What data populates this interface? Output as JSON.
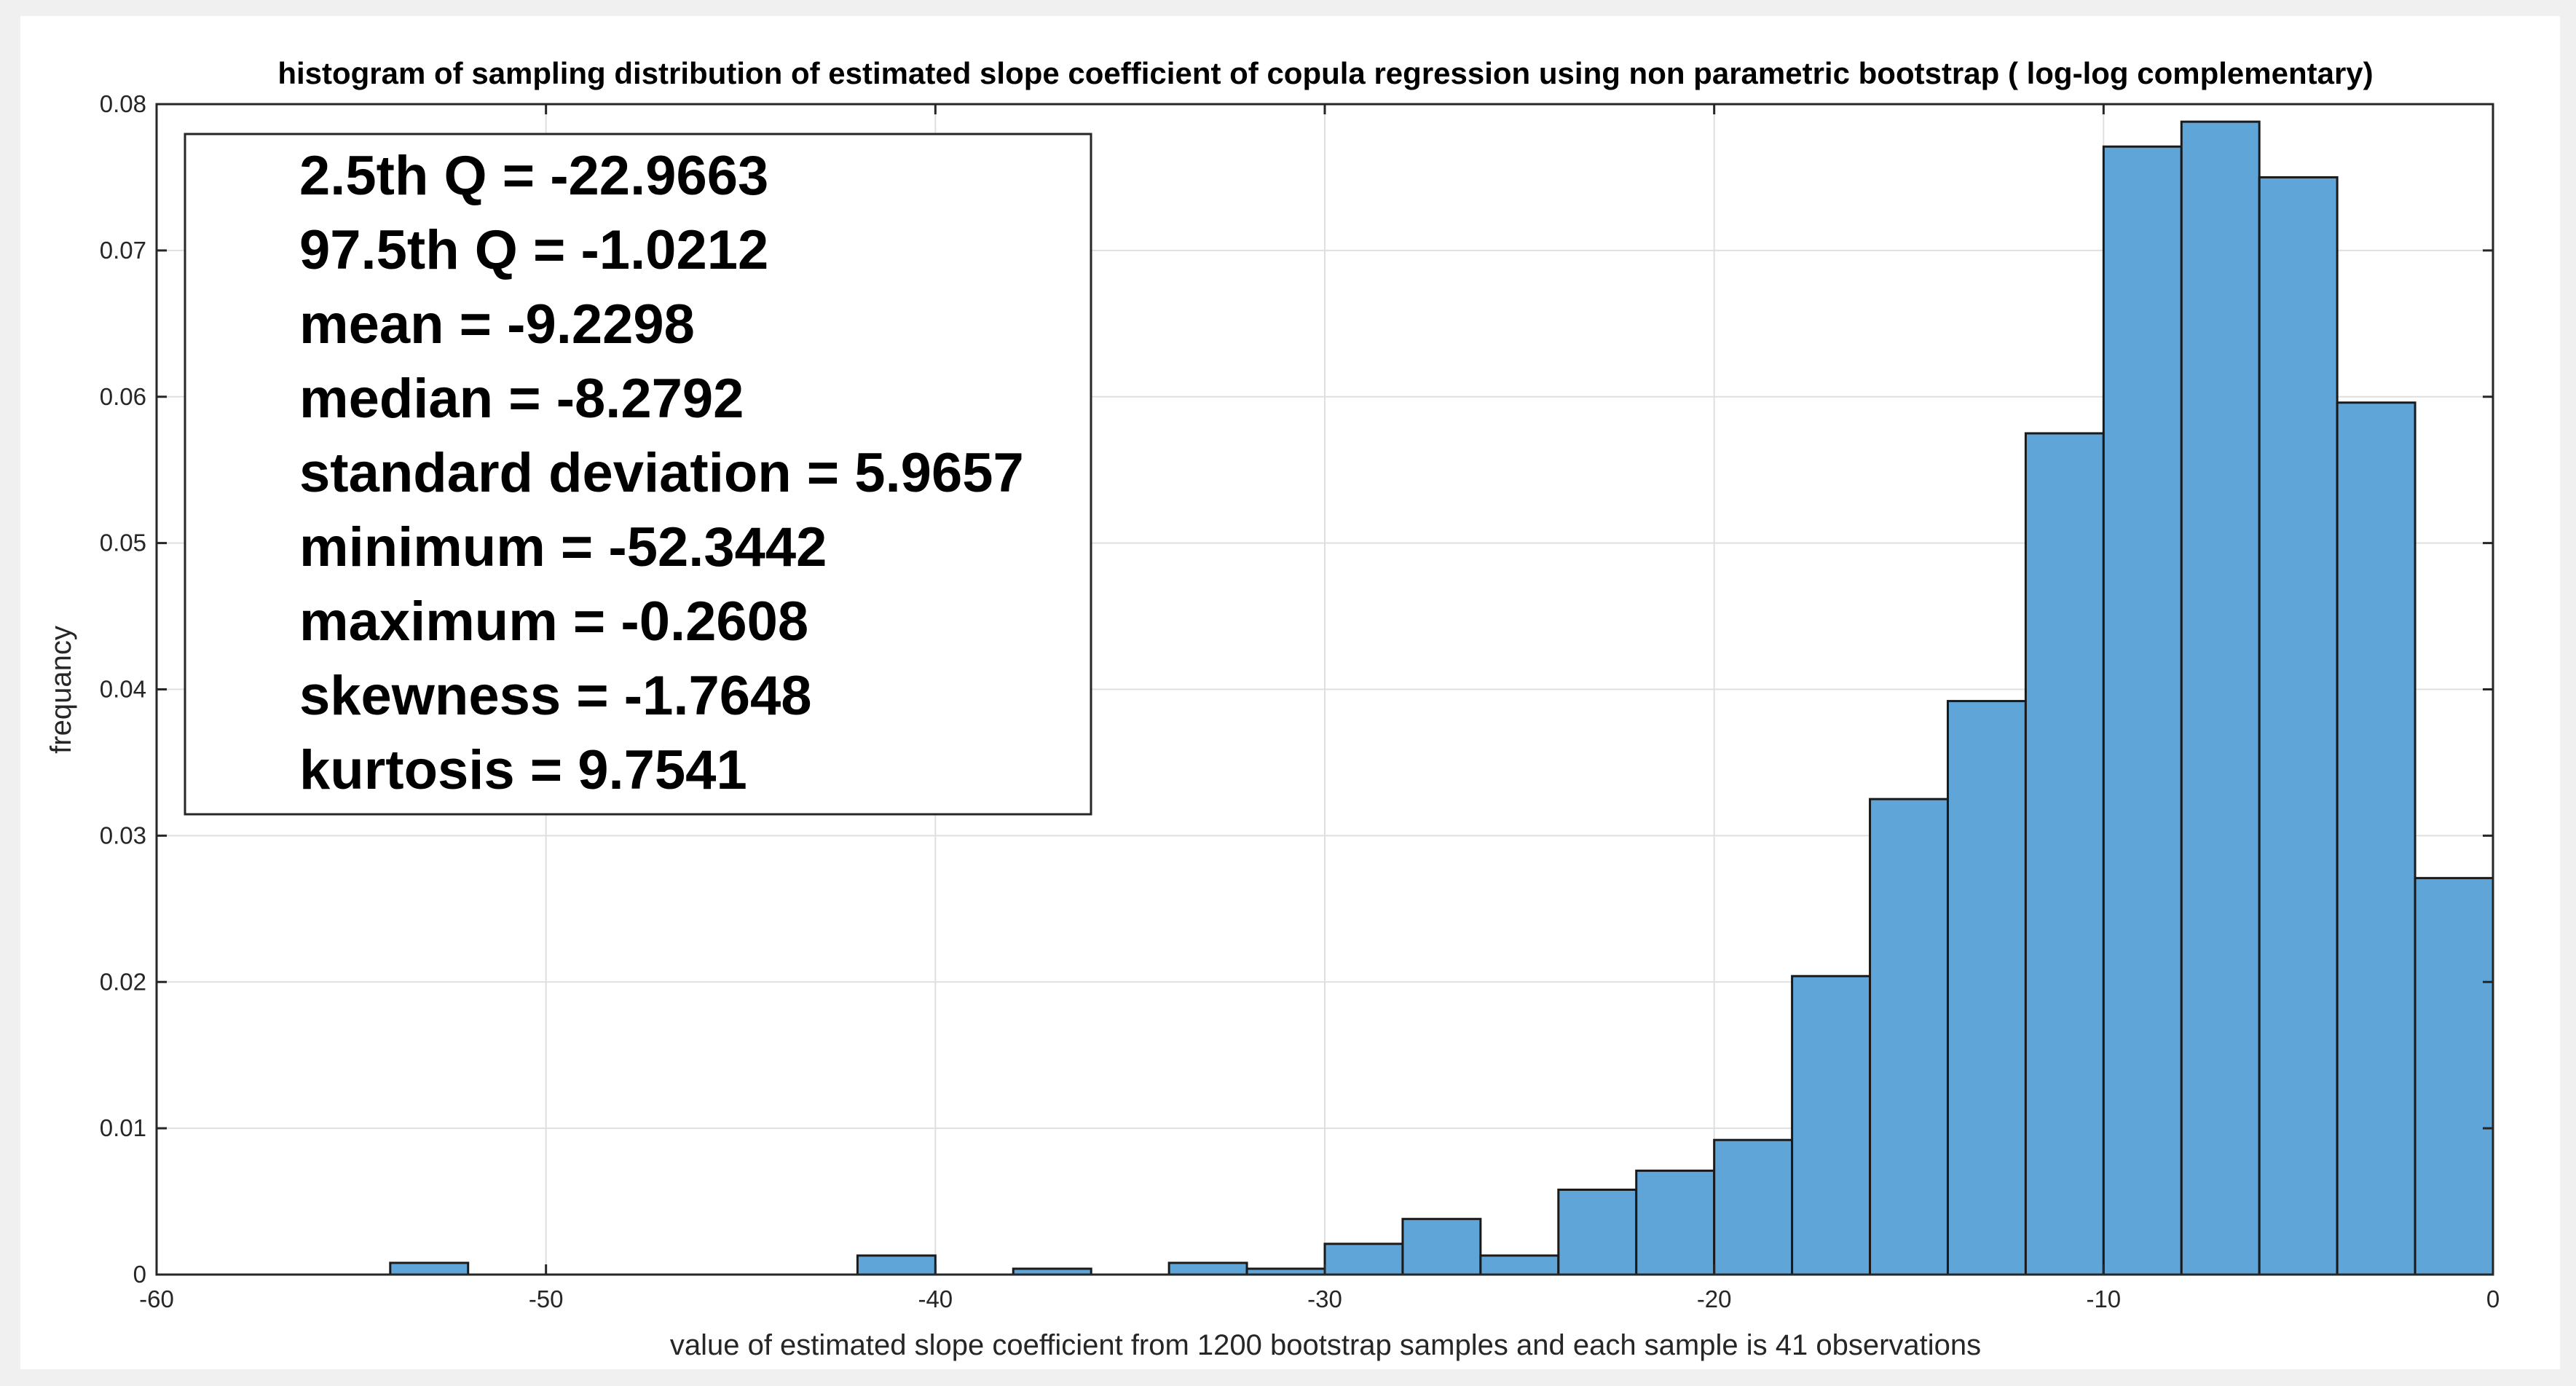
{
  "chart_data": {
    "type": "bar",
    "title": "histogram of sampling distribution of estimated slope coefficient of copula regression using non parametric bootstrap ( log-log complementary)",
    "xlabel": "value of estimated slope coefficient from 1200 bootstrap samples  and each sample is 41 observations",
    "ylabel": "frequancy",
    "xlim": [
      -60,
      0
    ],
    "ylim": [
      0,
      0.08
    ],
    "xticks": [
      -60,
      -50,
      -40,
      -30,
      -20,
      -10,
      0
    ],
    "xtick_labels": [
      "-60",
      "-50",
      "-40",
      "-30",
      "-20",
      "-10",
      "0"
    ],
    "yticks": [
      0,
      0.01,
      0.02,
      0.03,
      0.04,
      0.05,
      0.06,
      0.07,
      0.08
    ],
    "ytick_labels": [
      "0",
      "0.01",
      "0.02",
      "0.03",
      "0.04",
      "0.05",
      "0.06",
      "0.07",
      "0.08"
    ],
    "grid": true,
    "bar_color": "#5fa5d8",
    "bar_edge_color": "#1a1a1a",
    "bins": [
      {
        "x0": -54,
        "x1": -52,
        "value": 0.0008
      },
      {
        "x0": -42,
        "x1": -40,
        "value": 0.0013
      },
      {
        "x0": -38,
        "x1": -36,
        "value": 0.0004
      },
      {
        "x0": -34,
        "x1": -32,
        "value": 0.0008
      },
      {
        "x0": -32,
        "x1": -30,
        "value": 0.0004
      },
      {
        "x0": -30,
        "x1": -28,
        "value": 0.0021
      },
      {
        "x0": -28,
        "x1": -26,
        "value": 0.0038
      },
      {
        "x0": -26,
        "x1": -24,
        "value": 0.0013
      },
      {
        "x0": -24,
        "x1": -22,
        "value": 0.0058
      },
      {
        "x0": -22,
        "x1": -20,
        "value": 0.0071
      },
      {
        "x0": -20,
        "x1": -18,
        "value": 0.0092
      },
      {
        "x0": -18,
        "x1": -16,
        "value": 0.0204
      },
      {
        "x0": -16,
        "x1": -14,
        "value": 0.0325
      },
      {
        "x0": -14,
        "x1": -12,
        "value": 0.0392
      },
      {
        "x0": -12,
        "x1": -10,
        "value": 0.0575
      },
      {
        "x0": -10,
        "x1": -8,
        "value": 0.0771
      },
      {
        "x0": -8,
        "x1": -6,
        "value": 0.0788
      },
      {
        "x0": -6,
        "x1": -4,
        "value": 0.075
      },
      {
        "x0": -4,
        "x1": -2,
        "value": 0.0596
      },
      {
        "x0": -2,
        "x1": 0,
        "value": 0.0271
      }
    ],
    "annotations": [
      "2.5th Q = -22.9663",
      "97.5th Q = -1.0212",
      "mean = -9.2298",
      "median = -8.2792",
      "standard deviation = 5.9657",
      "minimum = -52.3442",
      "maximum = -0.2608",
      "skewness = -1.7648",
      "kurtosis = 9.7541"
    ],
    "annotation_placement": "top-left"
  }
}
